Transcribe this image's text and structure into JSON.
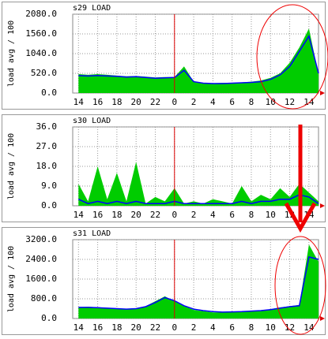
{
  "chart_data": [
    {
      "type": "area",
      "title": "s29 LOAD",
      "y_label": "load avg / 100",
      "x": [
        0,
        1,
        2,
        3,
        4,
        5,
        6,
        7,
        8,
        9,
        10,
        11,
        12,
        13,
        14,
        15,
        16,
        17,
        18,
        19,
        20,
        21,
        22,
        23,
        24,
        25
      ],
      "xlim": [
        -0.6,
        25
      ],
      "xticks": [
        {
          "value": 0,
          "label": "14"
        },
        {
          "value": 2,
          "label": "16"
        },
        {
          "value": 4,
          "label": "18"
        },
        {
          "value": 6,
          "label": "20"
        },
        {
          "value": 8,
          "label": "22"
        },
        {
          "value": 10,
          "label": "0"
        },
        {
          "value": 12,
          "label": "2"
        },
        {
          "value": 14,
          "label": "4"
        },
        {
          "value": 16,
          "label": "6"
        },
        {
          "value": 18,
          "label": "8"
        },
        {
          "value": 20,
          "label": "10"
        },
        {
          "value": 22,
          "label": "12"
        },
        {
          "value": 24,
          "label": "14"
        }
      ],
      "ylim": [
        0,
        2080
      ],
      "yticks": [
        {
          "value": 0,
          "label": "0.0"
        },
        {
          "value": 520,
          "label": "520.0"
        },
        {
          "value": 1040,
          "label": "1040.0"
        },
        {
          "value": 1560,
          "label": "1560.0"
        },
        {
          "value": 2080,
          "label": "2080.0"
        }
      ],
      "grid": true,
      "series": [
        {
          "color": "#00cc00",
          "fill": true,
          "values": [
            500,
            480,
            500,
            480,
            460,
            440,
            450,
            430,
            410,
            420,
            420,
            700,
            300,
            270,
            260,
            270,
            270,
            280,
            300,
            330,
            400,
            520,
            800,
            1200,
            1700,
            500
          ]
        },
        {
          "color": "#0000ff",
          "fill": false,
          "values": [
            460,
            450,
            460,
            450,
            440,
            420,
            430,
            410,
            390,
            400,
            410,
            600,
            300,
            260,
            250,
            250,
            260,
            270,
            280,
            300,
            360,
            480,
            700,
            1100,
            1500,
            520
          ]
        }
      ]
    },
    {
      "type": "area",
      "title": "s30 LOAD",
      "y_label": "load avg / 100",
      "x": [
        0,
        1,
        2,
        3,
        4,
        5,
        6,
        7,
        8,
        9,
        10,
        11,
        12,
        13,
        14,
        15,
        16,
        17,
        18,
        19,
        20,
        21,
        22,
        23,
        24,
        25
      ],
      "xlim": [
        -0.6,
        25
      ],
      "xticks": [
        {
          "value": 0,
          "label": "14"
        },
        {
          "value": 2,
          "label": "16"
        },
        {
          "value": 4,
          "label": "18"
        },
        {
          "value": 6,
          "label": "20"
        },
        {
          "value": 8,
          "label": "22"
        },
        {
          "value": 10,
          "label": "0"
        },
        {
          "value": 12,
          "label": "2"
        },
        {
          "value": 14,
          "label": "4"
        },
        {
          "value": 16,
          "label": "6"
        },
        {
          "value": 18,
          "label": "8"
        },
        {
          "value": 20,
          "label": "10"
        },
        {
          "value": 22,
          "label": "12"
        },
        {
          "value": 24,
          "label": "14"
        }
      ],
      "ylim": [
        0,
        36
      ],
      "yticks": [
        {
          "value": 0,
          "label": "0.0"
        },
        {
          "value": 9,
          "label": "9.0"
        },
        {
          "value": 18,
          "label": "18.0"
        },
        {
          "value": 27,
          "label": "27.0"
        },
        {
          "value": 36,
          "label": "36.0"
        }
      ],
      "grid": true,
      "series": [
        {
          "color": "#00cc00",
          "fill": true,
          "values": [
            10,
            2,
            18,
            3,
            15,
            2,
            20,
            1,
            4,
            2,
            8,
            1,
            2,
            1,
            3,
            2,
            1,
            9,
            2,
            5,
            3,
            8,
            4,
            10,
            6,
            2
          ]
        },
        {
          "color": "#0000ff",
          "fill": false,
          "values": [
            3,
            1,
            2,
            1,
            2,
            1,
            2,
            1,
            1,
            1,
            2,
            1,
            1,
            1,
            1,
            1,
            1,
            2,
            1,
            2,
            2,
            3,
            3,
            5,
            4,
            1
          ]
        }
      ]
    },
    {
      "type": "area",
      "title": "s31 LOAD",
      "y_label": "load avg / 100",
      "x": [
        0,
        1,
        2,
        3,
        4,
        5,
        6,
        7,
        8,
        9,
        10,
        11,
        12,
        13,
        14,
        15,
        16,
        17,
        18,
        19,
        20,
        21,
        22,
        23,
        24,
        25
      ],
      "xlim": [
        -0.6,
        25
      ],
      "xticks": [
        {
          "value": 0,
          "label": "14"
        },
        {
          "value": 2,
          "label": "16"
        },
        {
          "value": 4,
          "label": "18"
        },
        {
          "value": 6,
          "label": "20"
        },
        {
          "value": 8,
          "label": "22"
        },
        {
          "value": 10,
          "label": "0"
        },
        {
          "value": 12,
          "label": "2"
        },
        {
          "value": 14,
          "label": "4"
        },
        {
          "value": 16,
          "label": "6"
        },
        {
          "value": 18,
          "label": "8"
        },
        {
          "value": 20,
          "label": "10"
        },
        {
          "value": 22,
          "label": "12"
        },
        {
          "value": 24,
          "label": "14"
        }
      ],
      "ylim": [
        0,
        3200
      ],
      "yticks": [
        {
          "value": 0,
          "label": "0.0"
        },
        {
          "value": 800,
          "label": "800.0"
        },
        {
          "value": 1600,
          "label": "1600.0"
        },
        {
          "value": 2400,
          "label": "2400.0"
        },
        {
          "value": 3200,
          "label": "3200.0"
        }
      ],
      "grid": true,
      "series": [
        {
          "color": "#00cc00",
          "fill": true,
          "values": [
            450,
            480,
            450,
            420,
            400,
            380,
            420,
            500,
            700,
            900,
            700,
            500,
            350,
            300,
            250,
            250,
            260,
            280,
            300,
            320,
            380,
            450,
            500,
            550,
            3000,
            2300
          ]
        },
        {
          "color": "#0000ff",
          "fill": false,
          "values": [
            450,
            450,
            440,
            420,
            400,
            380,
            400,
            480,
            650,
            850,
            720,
            520,
            380,
            320,
            280,
            260,
            270,
            280,
            300,
            320,
            360,
            420,
            480,
            520,
            2500,
            2400
          ]
        }
      ]
    }
  ]
}
